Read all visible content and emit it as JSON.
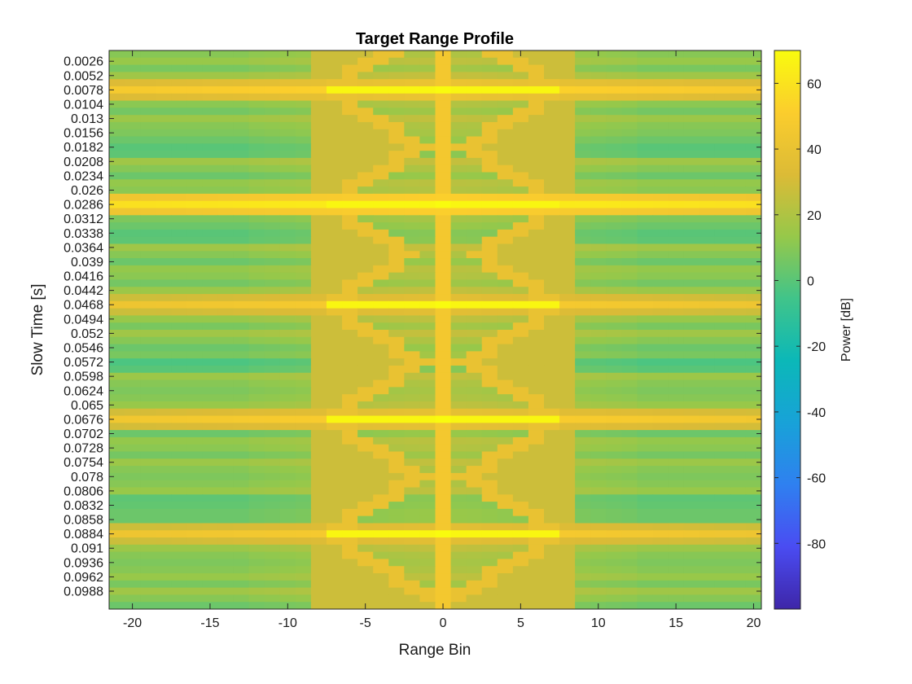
{
  "chart_data": {
    "type": "heatmap",
    "title": "Target Range Profile",
    "xlabel": "Range Bin",
    "ylabel": "Slow Time [s]",
    "colorbar_label": "Power [dB]",
    "colormap": "parula",
    "colormap_stops": [
      "#3e26a8",
      "#4a4cf2",
      "#2f80f0",
      "#18a2d8",
      "#0bb8b8",
      "#40c48a",
      "#96c84a",
      "#dcbb36",
      "#fbcd2d",
      "#f9fb0e"
    ],
    "clim": [
      -100,
      70
    ],
    "colorbar_ticks": [
      60,
      40,
      20,
      0,
      -20,
      -40,
      -60,
      -80
    ],
    "xlim": [
      -21.5,
      20.5
    ],
    "x_ticks": [
      -20,
      -15,
      -10,
      -5,
      0,
      5,
      10,
      15,
      20
    ],
    "y_tick_labels": [
      "0.0026",
      "0.0052",
      "0.0078",
      "0.0104",
      "0.013",
      "0.0156",
      "0.0182",
      "0.0208",
      "0.0234",
      "0.026",
      "0.0286",
      "0.0312",
      "0.0338",
      "0.0364",
      "0.039",
      "0.0416",
      "0.0442",
      "0.0468",
      "0.0494",
      "0.052",
      "0.0546",
      "0.0572",
      "0.0598",
      "0.0624",
      "0.065",
      "0.0676",
      "0.0702",
      "0.0728",
      "0.0754",
      "0.078",
      "0.0806",
      "0.0832",
      "0.0858",
      "0.0884",
      "0.091",
      "0.0936",
      "0.0962",
      "0.0988"
    ],
    "range_bins": [
      -21,
      20
    ],
    "slow_time_step": 0.0013,
    "slow_time_rows": 78,
    "target_range_bin": 0,
    "peak_slow_times": [
      0.0078,
      0.0286,
      0.0468,
      0.0676,
      0.0884
    ],
    "strong_rows_db": [
      55,
      66,
      50,
      52,
      50
    ],
    "weak_rows_slow_times": [
      0.0182,
      0.0338,
      0.0572,
      0.0832
    ],
    "background_db": 10,
    "peak_power_db": 70
  }
}
